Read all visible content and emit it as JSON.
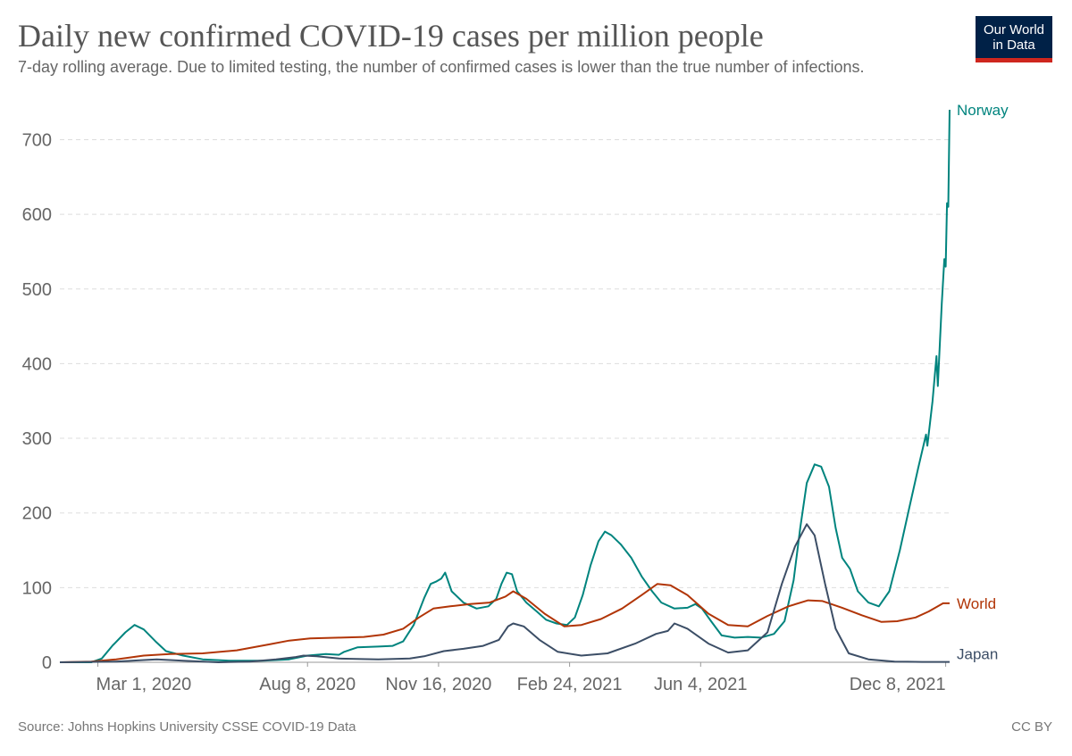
{
  "header": {
    "title": "Daily new confirmed COVID-19 cases per million people",
    "subtitle": "7-day rolling average. Due to limited testing, the number of confirmed cases is lower than the true number of infections.",
    "logo_line1": "Our World",
    "logo_line2": "in Data"
  },
  "footer": {
    "source": "Source: Johns Hopkins University CSSE COVID-19 Data",
    "license": "CC BY"
  },
  "colors": {
    "norway": "#00847e",
    "world": "#b13507",
    "japan": "#3c4e66",
    "grid": "#dddddd",
    "axis_text": "#666666",
    "logo_bg": "#002147",
    "logo_accent": "#ce261e"
  },
  "chart_data": {
    "type": "line",
    "title": "Daily new confirmed COVID-19 cases per million people",
    "subtitle": "7-day rolling average. Due to limited testing, the number of confirmed cases is lower than the true number of infections.",
    "x_type": "date",
    "xlim": [
      "2020-02-01",
      "2021-12-11"
    ],
    "ylim": [
      0,
      740
    ],
    "y_ticks": [
      0,
      100,
      200,
      300,
      400,
      500,
      600,
      700
    ],
    "x_ticks": [
      {
        "date": "2020-03-01",
        "label": "Mar 1, 2020"
      },
      {
        "date": "2020-08-08",
        "label": "Aug 8, 2020"
      },
      {
        "date": "2020-11-16",
        "label": "Nov 16, 2020"
      },
      {
        "date": "2021-02-24",
        "label": "Feb 24, 2021"
      },
      {
        "date": "2021-06-04",
        "label": "Jun 4, 2021"
      },
      {
        "date": "2021-12-08",
        "label": "Dec 8, 2021"
      }
    ],
    "grid": "horizontal dashed",
    "legend": "line labels at right end",
    "series": [
      {
        "name": "Norway",
        "color": "#00847e",
        "points": [
          [
            "2020-02-01",
            0
          ],
          [
            "2020-02-25",
            0
          ],
          [
            "2020-03-04",
            5
          ],
          [
            "2020-03-12",
            22
          ],
          [
            "2020-03-22",
            40
          ],
          [
            "2020-03-29",
            50
          ],
          [
            "2020-04-05",
            44
          ],
          [
            "2020-04-14",
            28
          ],
          [
            "2020-04-22",
            15
          ],
          [
            "2020-05-05",
            9
          ],
          [
            "2020-05-20",
            4
          ],
          [
            "2020-06-10",
            2
          ],
          [
            "2020-07-05",
            2
          ],
          [
            "2020-07-25",
            4
          ],
          [
            "2020-08-08",
            9
          ],
          [
            "2020-08-22",
            11
          ],
          [
            "2020-09-01",
            10
          ],
          [
            "2020-09-05",
            14
          ],
          [
            "2020-09-15",
            20
          ],
          [
            "2020-10-01",
            21
          ],
          [
            "2020-10-12",
            22
          ],
          [
            "2020-10-20",
            28
          ],
          [
            "2020-10-28",
            50
          ],
          [
            "2020-11-05",
            86
          ],
          [
            "2020-11-10",
            105
          ],
          [
            "2020-11-14",
            108
          ],
          [
            "2020-11-18",
            112
          ],
          [
            "2020-11-21",
            120
          ],
          [
            "2020-11-26",
            95
          ],
          [
            "2020-12-05",
            80
          ],
          [
            "2020-12-15",
            72
          ],
          [
            "2020-12-24",
            75
          ],
          [
            "2020-12-30",
            85
          ],
          [
            "2021-01-03",
            105
          ],
          [
            "2021-01-07",
            120
          ],
          [
            "2021-01-11",
            118
          ],
          [
            "2021-01-15",
            95
          ],
          [
            "2021-01-22",
            80
          ],
          [
            "2021-01-30",
            68
          ],
          [
            "2021-02-06",
            57
          ],
          [
            "2021-02-14",
            52
          ],
          [
            "2021-02-22",
            50
          ],
          [
            "2021-02-28",
            60
          ],
          [
            "2021-03-06",
            90
          ],
          [
            "2021-03-12",
            130
          ],
          [
            "2021-03-18",
            162
          ],
          [
            "2021-03-23",
            175
          ],
          [
            "2021-03-28",
            170
          ],
          [
            "2021-04-04",
            158
          ],
          [
            "2021-04-12",
            140
          ],
          [
            "2021-04-20",
            115
          ],
          [
            "2021-04-28",
            95
          ],
          [
            "2021-05-05",
            80
          ],
          [
            "2021-05-15",
            72
          ],
          [
            "2021-05-25",
            73
          ],
          [
            "2021-05-31",
            78
          ],
          [
            "2021-06-05",
            72
          ],
          [
            "2021-06-12",
            55
          ],
          [
            "2021-06-20",
            36
          ],
          [
            "2021-06-30",
            33
          ],
          [
            "2021-07-10",
            34
          ],
          [
            "2021-07-20",
            33
          ],
          [
            "2021-07-30",
            38
          ],
          [
            "2021-08-07",
            55
          ],
          [
            "2021-08-14",
            110
          ],
          [
            "2021-08-19",
            180
          ],
          [
            "2021-08-24",
            240
          ],
          [
            "2021-08-30",
            265
          ],
          [
            "2021-09-04",
            262
          ],
          [
            "2021-09-10",
            235
          ],
          [
            "2021-09-15",
            180
          ],
          [
            "2021-09-20",
            140
          ],
          [
            "2021-09-26",
            125
          ],
          [
            "2021-10-02",
            95
          ],
          [
            "2021-10-10",
            80
          ],
          [
            "2021-10-18",
            75
          ],
          [
            "2021-10-26",
            95
          ],
          [
            "2021-11-03",
            150
          ],
          [
            "2021-11-10",
            205
          ],
          [
            "2021-11-17",
            260
          ],
          [
            "2021-11-23",
            305
          ],
          [
            "2021-11-24",
            290
          ],
          [
            "2021-11-28",
            350
          ],
          [
            "2021-12-01",
            410
          ],
          [
            "2021-12-02",
            370
          ],
          [
            "2021-12-05",
            480
          ],
          [
            "2021-12-07",
            540
          ],
          [
            "2021-12-08",
            530
          ],
          [
            "2021-12-09",
            615
          ],
          [
            "2021-12-10",
            610
          ],
          [
            "2021-12-11",
            740
          ]
        ]
      },
      {
        "name": "World",
        "color": "#b13507",
        "points": [
          [
            "2020-02-01",
            0
          ],
          [
            "2020-02-25",
            1
          ],
          [
            "2020-03-15",
            4
          ],
          [
            "2020-04-05",
            9
          ],
          [
            "2020-04-25",
            11
          ],
          [
            "2020-05-20",
            12
          ],
          [
            "2020-06-15",
            16
          ],
          [
            "2020-07-10",
            24
          ],
          [
            "2020-07-25",
            29
          ],
          [
            "2020-08-10",
            32
          ],
          [
            "2020-09-01",
            33
          ],
          [
            "2020-09-20",
            34
          ],
          [
            "2020-10-05",
            37
          ],
          [
            "2020-10-20",
            45
          ],
          [
            "2020-11-01",
            60
          ],
          [
            "2020-11-12",
            72
          ],
          [
            "2020-11-25",
            75
          ],
          [
            "2020-12-10",
            78
          ],
          [
            "2020-12-25",
            80
          ],
          [
            "2021-01-06",
            88
          ],
          [
            "2021-01-12",
            95
          ],
          [
            "2021-01-22",
            85
          ],
          [
            "2021-02-05",
            65
          ],
          [
            "2021-02-20",
            48
          ],
          [
            "2021-03-05",
            50
          ],
          [
            "2021-03-20",
            58
          ],
          [
            "2021-04-05",
            72
          ],
          [
            "2021-04-20",
            90
          ],
          [
            "2021-05-02",
            105
          ],
          [
            "2021-05-12",
            103
          ],
          [
            "2021-05-25",
            90
          ],
          [
            "2021-06-10",
            65
          ],
          [
            "2021-06-25",
            50
          ],
          [
            "2021-07-10",
            48
          ],
          [
            "2021-07-25",
            62
          ],
          [
            "2021-08-10",
            75
          ],
          [
            "2021-08-25",
            83
          ],
          [
            "2021-09-05",
            82
          ],
          [
            "2021-09-20",
            73
          ],
          [
            "2021-10-05",
            63
          ],
          [
            "2021-10-20",
            54
          ],
          [
            "2021-11-01",
            55
          ],
          [
            "2021-11-15",
            60
          ],
          [
            "2021-11-25",
            68
          ],
          [
            "2021-12-01",
            74
          ],
          [
            "2021-12-06",
            79
          ],
          [
            "2021-12-11",
            79
          ]
        ]
      },
      {
        "name": "Japan",
        "color": "#3c4e66",
        "points": [
          [
            "2020-02-01",
            0
          ],
          [
            "2020-03-15",
            1
          ],
          [
            "2020-04-05",
            3
          ],
          [
            "2020-04-15",
            4
          ],
          [
            "2020-05-05",
            2
          ],
          [
            "2020-06-01",
            0
          ],
          [
            "2020-06-25",
            1
          ],
          [
            "2020-07-15",
            4
          ],
          [
            "2020-07-30",
            7
          ],
          [
            "2020-08-05",
            9
          ],
          [
            "2020-08-15",
            8
          ],
          [
            "2020-09-01",
            5
          ],
          [
            "2020-10-01",
            4
          ],
          [
            "2020-10-25",
            5
          ],
          [
            "2020-11-05",
            8
          ],
          [
            "2020-11-20",
            15
          ],
          [
            "2020-12-05",
            18
          ],
          [
            "2020-12-20",
            22
          ],
          [
            "2021-01-01",
            30
          ],
          [
            "2021-01-08",
            48
          ],
          [
            "2021-01-12",
            52
          ],
          [
            "2021-01-20",
            48
          ],
          [
            "2021-02-01",
            30
          ],
          [
            "2021-02-15",
            14
          ],
          [
            "2021-03-05",
            9
          ],
          [
            "2021-03-25",
            12
          ],
          [
            "2021-04-15",
            25
          ],
          [
            "2021-05-01",
            38
          ],
          [
            "2021-05-10",
            42
          ],
          [
            "2021-05-15",
            52
          ],
          [
            "2021-05-25",
            45
          ],
          [
            "2021-06-10",
            25
          ],
          [
            "2021-06-25",
            13
          ],
          [
            "2021-07-10",
            16
          ],
          [
            "2021-07-25",
            40
          ],
          [
            "2021-08-05",
            105
          ],
          [
            "2021-08-15",
            155
          ],
          [
            "2021-08-24",
            185
          ],
          [
            "2021-08-30",
            170
          ],
          [
            "2021-09-07",
            105
          ],
          [
            "2021-09-15",
            45
          ],
          [
            "2021-09-25",
            12
          ],
          [
            "2021-10-10",
            4
          ],
          [
            "2021-10-30",
            1
          ],
          [
            "2021-11-20",
            0.5
          ],
          [
            "2021-12-11",
            0.5
          ]
        ]
      }
    ]
  }
}
